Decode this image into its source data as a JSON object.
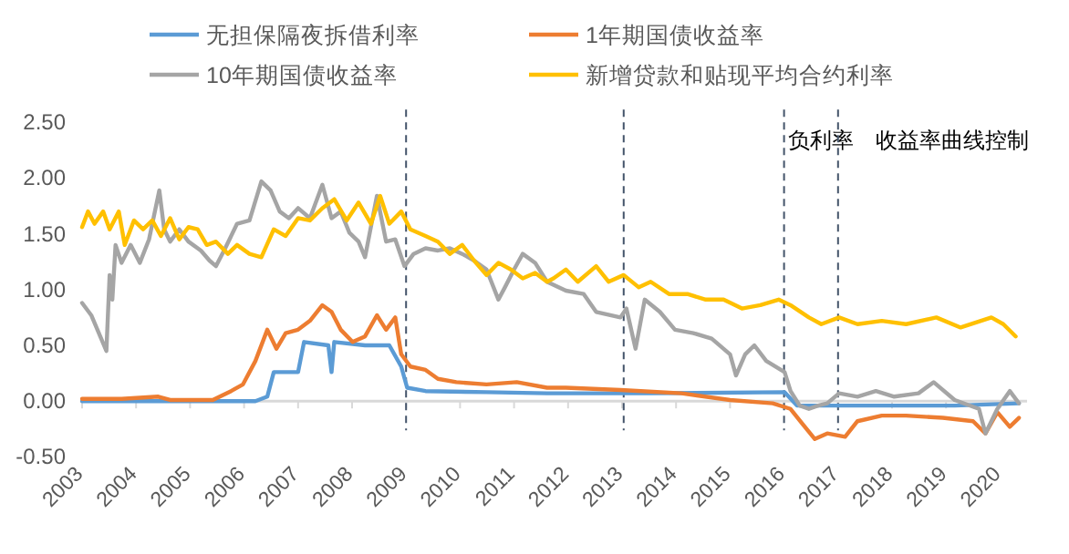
{
  "chart_data": {
    "type": "line",
    "legend": "top",
    "marker": "none",
    "line_style": "solid",
    "grid": false,
    "xlim": [
      2003,
      2020.5
    ],
    "ylim": [
      -0.5,
      2.5
    ],
    "xticks": [
      2003,
      2004,
      2005,
      2006,
      2007,
      2008,
      2009,
      2010,
      2011,
      2012,
      2013,
      2014,
      2015,
      2016,
      2017,
      2018,
      2019,
      2020
    ],
    "yticks": [
      {
        "value": -0.5,
        "label": "-0.50"
      },
      {
        "value": 0,
        "label": "0.00"
      },
      {
        "value": 0.5,
        "label": "0.50"
      },
      {
        "value": 1,
        "label": "1.00"
      },
      {
        "value": 1.5,
        "label": "1.50"
      },
      {
        "value": 2,
        "label": "2.00"
      },
      {
        "value": 2.5,
        "label": "2.50"
      }
    ],
    "ref_lines": [
      {
        "axis": "x",
        "value": 2009.0,
        "color": "#44546a",
        "line_style": "dashed"
      },
      {
        "axis": "x",
        "value": 2013.03,
        "color": "#44546a",
        "line_style": "dashed"
      },
      {
        "axis": "x",
        "value": 2016.0,
        "label": "负利率",
        "color": "#44546a",
        "line_style": "dashed"
      },
      {
        "axis": "x",
        "value": 2017.0,
        "label": "收益率曲线控制",
        "color": "#44546a",
        "line_style": "dashed"
      }
    ],
    "series": [
      {
        "name": "无担保隔夜拆借利率",
        "color": "#5b9bd5",
        "x": [
          2003.0,
          2006.21,
          2006.43,
          2006.55,
          2007.0,
          2007.11,
          2007.56,
          2007.62,
          2007.67,
          2008.24,
          2008.69,
          2008.91,
          2009.02,
          2009.36,
          2010.49,
          2011.61,
          2013.53,
          2016.01,
          2016.24,
          2016.91,
          2019.16,
          2020.35
        ],
        "values": [
          0,
          0,
          0.04,
          0.26,
          0.26,
          0.53,
          0.5,
          0.26,
          0.53,
          0.5,
          0.5,
          0.31,
          0.12,
          0.09,
          0.08,
          0.07,
          0.07,
          0.08,
          -0.04,
          -0.04,
          -0.04,
          -0.02
        ]
      },
      {
        "name": "1年期国债收益率",
        "color": "#ed7d31",
        "x": [
          2003.0,
          2003.73,
          2004.41,
          2004.63,
          2005.42,
          2005.76,
          2005.98,
          2006.21,
          2006.43,
          2006.6,
          2006.77,
          2007.0,
          2007.22,
          2007.45,
          2007.62,
          2007.79,
          2008.01,
          2008.24,
          2008.46,
          2008.63,
          2008.8,
          2008.91,
          2009.08,
          2009.36,
          2009.59,
          2009.93,
          2010.49,
          2011.05,
          2011.61,
          2011.96,
          2012.97,
          2014.1,
          2015.0,
          2015.79,
          2016.12,
          2016.35,
          2016.57,
          2016.8,
          2017.13,
          2017.36,
          2017.81,
          2018.26,
          2018.94,
          2019.5,
          2019.73,
          2019.95,
          2020.18,
          2020.35
        ],
        "values": [
          0.02,
          0.02,
          0.04,
          0.01,
          0.01,
          0.09,
          0.15,
          0.36,
          0.64,
          0.47,
          0.61,
          0.64,
          0.72,
          0.86,
          0.8,
          0.64,
          0.53,
          0.58,
          0.77,
          0.64,
          0.75,
          0.42,
          0.31,
          0.28,
          0.2,
          0.17,
          0.15,
          0.17,
          0.12,
          0.12,
          0.1,
          0.07,
          0.01,
          -0.02,
          -0.07,
          -0.21,
          -0.34,
          -0.29,
          -0.32,
          -0.18,
          -0.13,
          -0.13,
          -0.15,
          -0.18,
          -0.29,
          -0.1,
          -0.23,
          -0.15
        ]
      },
      {
        "name": "10年期国债收益率",
        "color": "#a5a5a5",
        "x": [
          2003.0,
          2003.17,
          2003.45,
          2003.51,
          2003.56,
          2003.62,
          2003.73,
          2003.9,
          2004.07,
          2004.24,
          2004.43,
          2004.52,
          2004.63,
          2004.8,
          2004.97,
          2005.2,
          2005.36,
          2005.48,
          2005.65,
          2005.87,
          2006.1,
          2006.32,
          2006.49,
          2006.66,
          2006.83,
          2007.0,
          2007.22,
          2007.45,
          2007.62,
          2007.79,
          2007.95,
          2008.12,
          2008.24,
          2008.46,
          2008.63,
          2008.8,
          2008.97,
          2009.14,
          2009.36,
          2009.59,
          2009.81,
          2010.04,
          2010.26,
          2010.49,
          2010.71,
          2010.83,
          2011.0,
          2011.16,
          2011.39,
          2011.61,
          2011.96,
          2012.29,
          2012.52,
          2012.97,
          2013.08,
          2013.25,
          2013.42,
          2013.7,
          2013.98,
          2014.32,
          2014.66,
          2015.0,
          2015.11,
          2015.28,
          2015.45,
          2015.67,
          2016.01,
          2016.12,
          2016.29,
          2016.46,
          2016.63,
          2016.8,
          2017.02,
          2017.36,
          2017.7,
          2018.04,
          2018.49,
          2018.77,
          2019.16,
          2019.61,
          2019.73,
          2019.95,
          2020.18,
          2020.35
        ],
        "values": [
          0.88,
          0.77,
          0.45,
          1.13,
          0.91,
          1.4,
          1.24,
          1.4,
          1.24,
          1.45,
          1.89,
          1.54,
          1.43,
          1.54,
          1.43,
          1.35,
          1.26,
          1.21,
          1.37,
          1.59,
          1.62,
          1.97,
          1.89,
          1.7,
          1.64,
          1.73,
          1.64,
          1.94,
          1.64,
          1.7,
          1.51,
          1.43,
          1.29,
          1.84,
          1.43,
          1.45,
          1.21,
          1.32,
          1.37,
          1.35,
          1.37,
          1.32,
          1.26,
          1.18,
          0.91,
          1.02,
          1.18,
          1.32,
          1.24,
          1.07,
          0.99,
          0.96,
          0.8,
          0.75,
          0.83,
          0.47,
          0.91,
          0.8,
          0.64,
          0.61,
          0.56,
          0.42,
          0.23,
          0.42,
          0.5,
          0.36,
          0.26,
          0.09,
          -0.04,
          -0.07,
          -0.04,
          -0.02,
          0.07,
          0.04,
          0.09,
          0.04,
          0.07,
          0.17,
          0.01,
          -0.07,
          -0.29,
          -0.07,
          0.09,
          -0.02
        ]
      },
      {
        "name": "新增贷款和贴现平均合约利率",
        "color": "#ffc000",
        "x": [
          2003.0,
          2003.11,
          2003.23,
          2003.39,
          2003.51,
          2003.68,
          2003.79,
          2003.96,
          2004.13,
          2004.3,
          2004.46,
          2004.63,
          2004.8,
          2004.97,
          2005.14,
          2005.31,
          2005.48,
          2005.7,
          2005.87,
          2006.1,
          2006.32,
          2006.55,
          2006.77,
          2007.0,
          2007.22,
          2007.45,
          2007.67,
          2007.9,
          2008.12,
          2008.35,
          2008.52,
          2008.69,
          2008.91,
          2009.08,
          2009.36,
          2009.59,
          2009.81,
          2010.04,
          2010.26,
          2010.49,
          2010.71,
          2010.94,
          2011.16,
          2011.39,
          2011.61,
          2011.73,
          2011.96,
          2012.18,
          2012.52,
          2012.75,
          2013.03,
          2013.31,
          2013.53,
          2013.87,
          2014.21,
          2014.55,
          2014.88,
          2015.22,
          2015.56,
          2015.9,
          2016.12,
          2016.46,
          2016.69,
          2017.02,
          2017.36,
          2017.81,
          2018.26,
          2018.82,
          2019.27,
          2019.84,
          2020.06,
          2020.29
        ],
        "values": [
          1.56,
          1.7,
          1.59,
          1.7,
          1.54,
          1.7,
          1.4,
          1.62,
          1.54,
          1.62,
          1.48,
          1.64,
          1.45,
          1.56,
          1.54,
          1.4,
          1.43,
          1.32,
          1.4,
          1.32,
          1.29,
          1.54,
          1.48,
          1.64,
          1.62,
          1.73,
          1.81,
          1.62,
          1.78,
          1.59,
          1.84,
          1.59,
          1.7,
          1.54,
          1.48,
          1.43,
          1.32,
          1.4,
          1.26,
          1.13,
          1.24,
          1.18,
          1.1,
          1.15,
          1.07,
          1.1,
          1.18,
          1.07,
          1.21,
          1.07,
          1.13,
          1.02,
          1.07,
          0.96,
          0.96,
          0.91,
          0.91,
          0.83,
          0.86,
          0.91,
          0.86,
          0.75,
          0.69,
          0.75,
          0.69,
          0.72,
          0.69,
          0.75,
          0.66,
          0.75,
          0.69,
          0.58
        ]
      }
    ]
  }
}
